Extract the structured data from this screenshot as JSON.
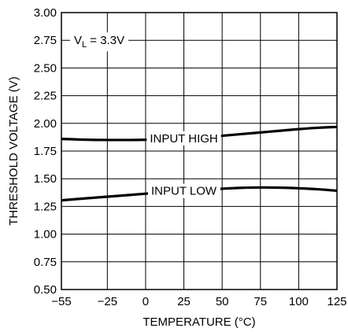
{
  "chart_data": {
    "type": "line",
    "xlabel": "TEMPERATURE (°C)",
    "ylabel": "THRESHOLD VOLTAGE (V)",
    "xlim": [
      -55,
      125
    ],
    "ylim": [
      0.5,
      3.0
    ],
    "x_ticks": [
      "−55",
      "−25",
      "0",
      "25",
      "50",
      "75",
      "100",
      "125"
    ],
    "x_tick_values": [
      -55,
      -25,
      0,
      25,
      50,
      75,
      100,
      125
    ],
    "y_ticks": [
      "0.50",
      "0.75",
      "1.00",
      "1.25",
      "1.50",
      "1.75",
      "2.00",
      "2.25",
      "2.50",
      "2.75",
      "3.00"
    ],
    "y_tick_values": [
      0.5,
      0.75,
      1.0,
      1.25,
      1.5,
      1.75,
      2.0,
      2.25,
      2.5,
      2.75,
      3.0
    ],
    "grid": true,
    "condition": {
      "main": "V",
      "sub": "L",
      "rest": " = 3.3V"
    },
    "series": [
      {
        "name": "INPUT HIGH",
        "color": "#000000",
        "x": [
          -55,
          -40,
          -25,
          -10,
          0,
          10,
          25,
          40,
          50,
          62.5,
          75,
          87.5,
          100,
          112.5,
          125
        ],
        "y": [
          1.86,
          1.853,
          1.85,
          1.85,
          1.852,
          1.857,
          1.865,
          1.878,
          1.888,
          1.903,
          1.918,
          1.933,
          1.948,
          1.96,
          1.968
        ]
      },
      {
        "name": "INPUT LOW",
        "color": "#000000",
        "x": [
          -55,
          -40,
          -25,
          -10,
          0,
          10,
          25,
          40,
          50,
          62.5,
          75,
          87.5,
          100,
          112.5,
          125
        ],
        "y": [
          1.305,
          1.322,
          1.338,
          1.354,
          1.365,
          1.375,
          1.39,
          1.402,
          1.41,
          1.418,
          1.421,
          1.42,
          1.414,
          1.405,
          1.392
        ]
      }
    ],
    "annotations": [
      {
        "text": "INPUT HIGH",
        "series": 0,
        "x": 25
      },
      {
        "text": "INPUT LOW",
        "series": 1,
        "x": 25
      }
    ]
  }
}
